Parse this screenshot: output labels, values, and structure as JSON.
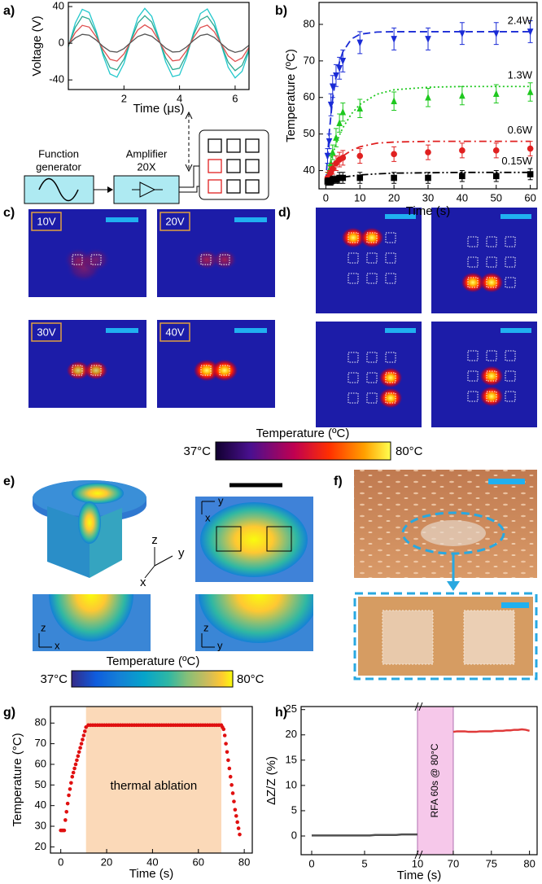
{
  "figure": {
    "panel_labels": [
      "a)",
      "b)",
      "c)",
      "d)",
      "e)",
      "f)",
      "g)",
      "h)"
    ],
    "diagram": {
      "function_generator": [
        "Function",
        "generator"
      ],
      "amplifier": [
        "Amplifier",
        "20X"
      ]
    },
    "thermal_images": {
      "voltages": [
        "10V",
        "20V",
        "30V",
        "40V"
      ]
    },
    "colorbar_ir": {
      "title": "Temperature (ºC)",
      "min": "37°C",
      "max": "80°C"
    },
    "simulation": {
      "triad": [
        "z",
        "y",
        "x"
      ],
      "section_xz": [
        "z",
        "x"
      ],
      "section_zy": [
        "z",
        "y"
      ],
      "top_view": [
        "y",
        "x"
      ]
    },
    "colorbar_sim": {
      "title": "Temperature (ºC)",
      "min": "37°C",
      "max": "80°C"
    }
  },
  "chart_data": [
    {
      "type": "line",
      "xlabel": "Time (μs)",
      "ylabel": "Voltage (V)",
      "xlim": [
        0,
        6.5
      ],
      "ylim": [
        -50.5,
        44.5
      ],
      "xticks": [
        2,
        4,
        6
      ],
      "yticks": [
        -40,
        0,
        40
      ],
      "x": [
        0,
        0.25,
        0.5,
        0.75,
        1,
        1.25,
        1.5,
        1.75,
        2,
        2.25,
        2.5,
        2.75,
        3,
        3.25,
        3.5,
        3.75,
        4,
        4.25,
        4.5,
        4.75,
        5,
        5.25,
        5.5,
        5.75,
        6,
        6.25,
        6.5
      ],
      "series": [
        {
          "color": "#22c8cc",
          "values": [
            -3.8,
            22.0,
            37.0,
            33.5,
            13.4,
            -13.4,
            -33.5,
            -37.0,
            -22.0,
            3.8,
            27.8,
            38.0,
            29.3,
            6.0,
            -20.2,
            -36.4,
            -34.5,
            -15.5,
            11.2,
            32.4,
            37.4,
            23.8,
            -1.6,
            -26.2,
            -37.8,
            -30.6,
            -8.3
          ]
        },
        {
          "color": "#2aa890",
          "values": [
            -3.0,
            17.4,
            29.2,
            26.5,
            10.6,
            -10.6,
            -26.5,
            -29.2,
            -17.4,
            3.0,
            22.0,
            30.0,
            23.1,
            4.7,
            -16.0,
            -28.8,
            -27.2,
            -12.2,
            8.9,
            25.6,
            29.6,
            18.8,
            -1.3,
            -20.7,
            -29.9,
            -24.2,
            -6.5
          ]
        },
        {
          "color": "#e05050",
          "values": [
            -2.0,
            11.6,
            19.5,
            17.6,
            7.0,
            -7.0,
            -17.6,
            -19.5,
            -11.6,
            2.0,
            14.6,
            20.0,
            15.4,
            3.2,
            -10.6,
            -19.2,
            -18.2,
            -8.1,
            5.9,
            17.1,
            19.7,
            12.5,
            -0.8,
            -13.8,
            -19.9,
            -16.1,
            -4.4
          ]
        },
        {
          "color": "#555555",
          "values": [
            -1.0,
            5.8,
            9.7,
            8.8,
            3.5,
            -3.5,
            -8.8,
            -9.7,
            -5.8,
            1.0,
            7.3,
            10.0,
            7.7,
            1.6,
            -5.3,
            -9.6,
            -9.1,
            -4.1,
            3.0,
            8.5,
            9.9,
            6.3,
            -0.4,
            -6.9,
            -10.0,
            -8.1,
            -2.2
          ]
        }
      ]
    },
    {
      "type": "errorbar",
      "xlabel": "Time (s)",
      "ylabel": "Temperature (ºC)",
      "xlim": [
        -2,
        62
      ],
      "ylim": [
        35,
        86
      ],
      "xticks": [
        0,
        10,
        20,
        30,
        40,
        50,
        60
      ],
      "yticks": [
        40,
        50,
        60,
        70,
        80
      ],
      "x": [
        0.5,
        1,
        1.5,
        2,
        3,
        4,
        5,
        10,
        20,
        30,
        40,
        50,
        60
      ],
      "fit_x": [
        0,
        1,
        2,
        3,
        4,
        5,
        7.5,
        10,
        15,
        20,
        30,
        40,
        50,
        60
      ],
      "series": [
        {
          "name": "2.4W",
          "color": "#1a2bd6",
          "marker": "triangle-down",
          "line_style": "dashed",
          "values": [
            44,
            48,
            58,
            63,
            66,
            68,
            70,
            75,
            76,
            76,
            77.5,
            77.5,
            78
          ],
          "errors": [
            2,
            2,
            3,
            3,
            3,
            3,
            3,
            3,
            3,
            3,
            3,
            3,
            3
          ],
          "fit": [
            37,
            50.5,
            59.6,
            65.7,
            69.7,
            72.5,
            76,
            77.3,
            77.9,
            78,
            78,
            78,
            78,
            78
          ]
        },
        {
          "name": "1.3W",
          "color": "#1ec81e",
          "marker": "triangle-up",
          "line_style": "dotted",
          "values": [
            38,
            40,
            42,
            45,
            49,
            53,
            56,
            57,
            59,
            60,
            60.5,
            61,
            61.5
          ],
          "errors": [
            1.5,
            1.5,
            2,
            2,
            2.5,
            2.5,
            2.5,
            2.5,
            2.5,
            2.5,
            2.5,
            2.5,
            2.5
          ],
          "fit": [
            37,
            41,
            44.4,
            47.2,
            49.7,
            51.7,
            55.5,
            58.1,
            60.9,
            62.1,
            62.8,
            63,
            63,
            63
          ]
        },
        {
          "name": "0.6W",
          "color": "#e02020",
          "marker": "circle",
          "line_style": "dash-dot",
          "values": [
            38,
            38.5,
            39.5,
            40.5,
            42,
            43,
            43.5,
            44,
            44.5,
            45,
            45.5,
            45.5,
            46
          ],
          "errors": [
            1.5,
            1.5,
            1.5,
            1.5,
            2,
            2,
            2,
            2,
            2,
            2,
            2,
            2,
            2
          ],
          "fit": [
            37,
            39,
            40.6,
            42,
            43.1,
            44,
            45.5,
            46.5,
            47.5,
            47.8,
            48,
            48,
            48,
            48
          ]
        },
        {
          "name": "0.15W",
          "color": "#000000",
          "marker": "square",
          "line_style": "dash-dot-dot",
          "values": [
            37,
            37,
            37,
            37.5,
            37.5,
            38,
            38,
            38,
            38,
            38,
            38.5,
            38.5,
            39
          ],
          "errors": [
            1,
            1,
            1,
            1,
            1,
            1.5,
            1.5,
            1.5,
            1.5,
            1.5,
            1.5,
            1.5,
            1.5
          ],
          "fit": [
            37,
            37.3,
            37.6,
            37.8,
            38,
            38.2,
            38.5,
            38.8,
            39.1,
            39.3,
            39.4,
            39.5,
            39.5,
            39.5
          ]
        }
      ]
    },
    {
      "type": "scatter",
      "xlabel": "Time (s)",
      "ylabel": "Temperature (°C)",
      "xlim": [
        -4.5,
        83.5
      ],
      "ylim": [
        17,
        88
      ],
      "xticks": [
        0,
        20,
        40,
        60,
        80
      ],
      "yticks": [
        20,
        30,
        40,
        50,
        60,
        70,
        80
      ],
      "color": "#e01010",
      "span": [
        11,
        70
      ],
      "span_color": "#fbd9b8",
      "annotation": "thermal ablation",
      "x": [
        0,
        0.5,
        1,
        1.5,
        2,
        2.5,
        3,
        3.5,
        4,
        4.5,
        5,
        5.5,
        6,
        6.5,
        7,
        7.5,
        8,
        8.5,
        9,
        9.5,
        10,
        10.5,
        11,
        12,
        13,
        14,
        15,
        16,
        17,
        18,
        19,
        20,
        21,
        22,
        23,
        24,
        25,
        26,
        27,
        28,
        29,
        30,
        31,
        32,
        33,
        34,
        35,
        36,
        37,
        38,
        39,
        40,
        41,
        42,
        43,
        44,
        45,
        46,
        47,
        48,
        49,
        50,
        51,
        52,
        53,
        54,
        55,
        56,
        57,
        58,
        59,
        60,
        61,
        62,
        63,
        64,
        65,
        66,
        67,
        68,
        69,
        70,
        70.5,
        71,
        71.5,
        72,
        72.5,
        73,
        73.5,
        74,
        74.5,
        75,
        75.5,
        76,
        76.5,
        77,
        77.5,
        78
      ],
      "values": [
        28,
        28,
        28,
        28,
        33,
        37,
        41,
        45,
        48,
        51,
        54,
        56,
        58,
        60,
        62,
        64,
        66,
        68,
        70,
        72,
        74,
        76,
        78,
        79,
        79,
        79,
        79,
        79,
        79,
        79,
        79,
        79,
        79,
        79,
        79,
        79,
        79,
        79,
        79,
        79,
        79,
        79,
        79,
        79,
        79,
        79,
        79,
        79,
        79,
        79,
        79,
        79,
        79,
        79,
        79,
        79,
        79,
        79,
        79,
        79,
        79,
        79,
        79,
        79,
        79,
        79,
        79,
        79,
        79,
        79,
        79,
        79,
        79,
        79,
        79,
        79,
        79,
        79,
        79,
        79,
        79,
        79,
        78,
        77,
        74,
        70,
        66,
        62,
        58,
        54,
        50,
        46,
        42,
        38,
        35,
        32,
        29,
        26
      ]
    },
    {
      "type": "line",
      "xlabel": "Time (s)",
      "ylabel": "ΔZ/Z (%)",
      "xlim": [
        -1,
        81
      ],
      "xbreak": [
        10,
        70
      ],
      "break_color": "#f6c8ea",
      "annotation": "RFA 60s @ 80°C",
      "ylim": [
        -3.7,
        25.6
      ],
      "xticks": [
        0,
        5,
        10,
        70,
        75,
        80
      ],
      "yticks": [
        0,
        5,
        10,
        15,
        20,
        25
      ],
      "series": [
        {
          "color": "#505050",
          "x": [
            0,
            0.5,
            1,
            1.5,
            2,
            2.5,
            3,
            3.5,
            4,
            4.5,
            5,
            5.5,
            6,
            6.5,
            7,
            7.5,
            8,
            8.5,
            9,
            9.5,
            10
          ],
          "values": [
            0.1,
            0.1,
            0.1,
            0.1,
            0.1,
            0.1,
            0.1,
            0.1,
            0.1,
            0.1,
            0.1,
            0.1,
            0.2,
            0.2,
            0.2,
            0.2,
            0.2,
            0.3,
            0.3,
            0.3,
            0.3
          ]
        },
        {
          "color": "#e03a3a",
          "x": [
            70,
            70.5,
            71,
            71.5,
            72,
            72.5,
            73,
            73.5,
            74,
            74.5,
            75,
            75.5,
            76,
            76.5,
            77,
            77.5,
            78,
            78.5,
            79,
            79.5,
            80
          ],
          "values": [
            20.6,
            20.7,
            20.7,
            20.7,
            20.6,
            20.6,
            20.6,
            20.7,
            20.7,
            20.7,
            20.7,
            20.8,
            20.8,
            20.8,
            20.9,
            20.9,
            21.0,
            21.0,
            21.1,
            21.0,
            20.8
          ]
        }
      ]
    }
  ]
}
